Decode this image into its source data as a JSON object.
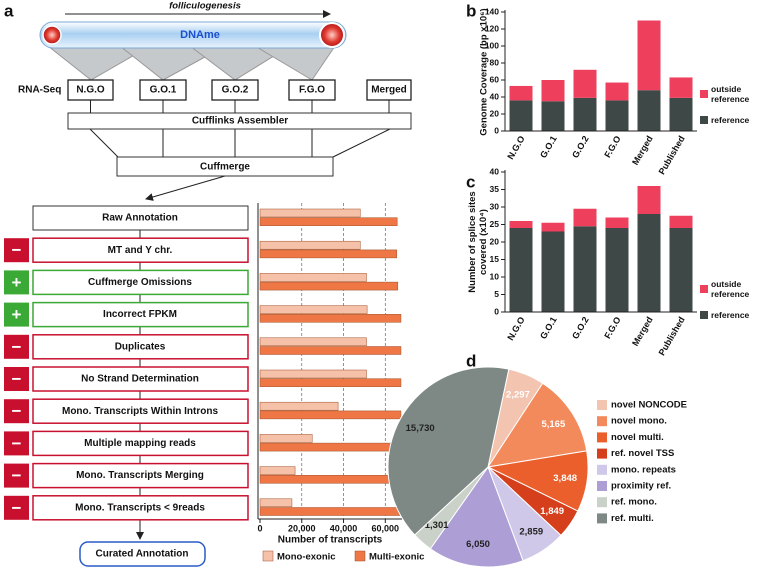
{
  "diagram": {
    "panel_labels": [
      "a",
      "b",
      "c",
      "d"
    ],
    "process": "folliculogenesis",
    "mark": "DNAme",
    "input_label": "RNA-Seq",
    "samples": [
      "N.G.O",
      "G.O.1",
      "G.O.2",
      "F.G.O",
      "Merged"
    ],
    "assembler": "Cufflinks Assembler",
    "merger": "Cuffmerge",
    "step_signs": [
      null,
      "−",
      "+",
      "+",
      "−",
      "−",
      "−",
      "−",
      "−",
      "−"
    ],
    "result": "Curated Annotation"
  },
  "chart_data": [
    {
      "type": "barh",
      "xlabel": "Number of transcripts",
      "categories": [
        "Raw Annotation",
        "MT and Y chr.",
        "Cuffmerge Omissions",
        "Incorrect FPKM",
        "Duplicates",
        "No Strand Determination",
        "Mono. Transcripts Within Introns",
        "Multiple mapping reads",
        "Mono. Transcripts Merging",
        "Mono. Transcripts < 9reads"
      ],
      "series": [
        {
          "name": "Mono-exonic",
          "color": "#f5c1a9",
          "values": [
            48000,
            48000,
            51000,
            51300,
            51000,
            51000,
            37400,
            25000,
            16800,
            15300
          ]
        },
        {
          "name": "Multi-exonic",
          "color": "#ee7745",
          "values": [
            65700,
            65500,
            66000,
            67500,
            67500,
            67500,
            67500,
            67500,
            67500,
            67500
          ]
        }
      ],
      "xlim": [
        0,
        68000
      ],
      "xticks": [
        0,
        {
          "value": 20000,
          "label": "20,000"
        },
        {
          "value": 40000,
          "label": "40,000"
        },
        {
          "value": 60000,
          "label": "60,000"
        }
      ],
      "grid": true
    },
    {
      "type": "bar",
      "stacked": true,
      "ylabel": "Genome Coverage (bp x10⁶)",
      "categories": [
        "N.G.O",
        "G.O.1",
        "G.O.2",
        "F.G.O",
        "Merged",
        "Published"
      ],
      "series": [
        {
          "name": "reference",
          "color": "#3e4847",
          "values": [
            36,
            35,
            39,
            36,
            48,
            39
          ]
        },
        {
          "name": "outside reference",
          "color": "#ee3f5d",
          "values": [
            17,
            25,
            33,
            21,
            82,
            24
          ]
        }
      ],
      "ylim": [
        0,
        140
      ],
      "yticks": [
        0,
        20,
        40,
        60,
        80,
        100,
        120,
        140
      ]
    },
    {
      "type": "bar",
      "stacked": true,
      "ylabel": "Number of splice sites covered (x10⁴)",
      "categories": [
        "N.G.O",
        "G.O.1",
        "G.O.2",
        "F.G.O",
        "Merged",
        "Published"
      ],
      "series": [
        {
          "name": "reference",
          "color": "#3e4847",
          "values": [
            24,
            23,
            24.5,
            24,
            28,
            24
          ]
        },
        {
          "name": "outside reference",
          "color": "#ee3f5d",
          "values": [
            2,
            2.5,
            5,
            3,
            8,
            3.5
          ]
        }
      ],
      "ylim": [
        0,
        40
      ],
      "yticks": [
        0,
        5,
        10,
        15,
        20,
        25,
        30,
        35,
        40
      ]
    },
    {
      "type": "pie",
      "categories": [
        "novel NONCODE",
        "novel mono.",
        "novel multi.",
        "ref. novel TSS",
        "mono. repeats",
        "proximity ref.",
        "ref. mono.",
        "ref. multi."
      ],
      "values": [
        2297,
        5165,
        3848,
        1849,
        2859,
        6050,
        1301,
        15730
      ],
      "value_labels": [
        "2,297",
        "5,165",
        "3,848",
        "1,849",
        "2,859",
        "6,050",
        "1,301",
        "15,730"
      ],
      "colors": [
        "#f3c4b0",
        "#f28a5c",
        "#ea5f2c",
        "#d63f1c",
        "#cfc8e8",
        "#ad9fd6",
        "#c9d1c9",
        "#7e8985"
      ]
    }
  ]
}
